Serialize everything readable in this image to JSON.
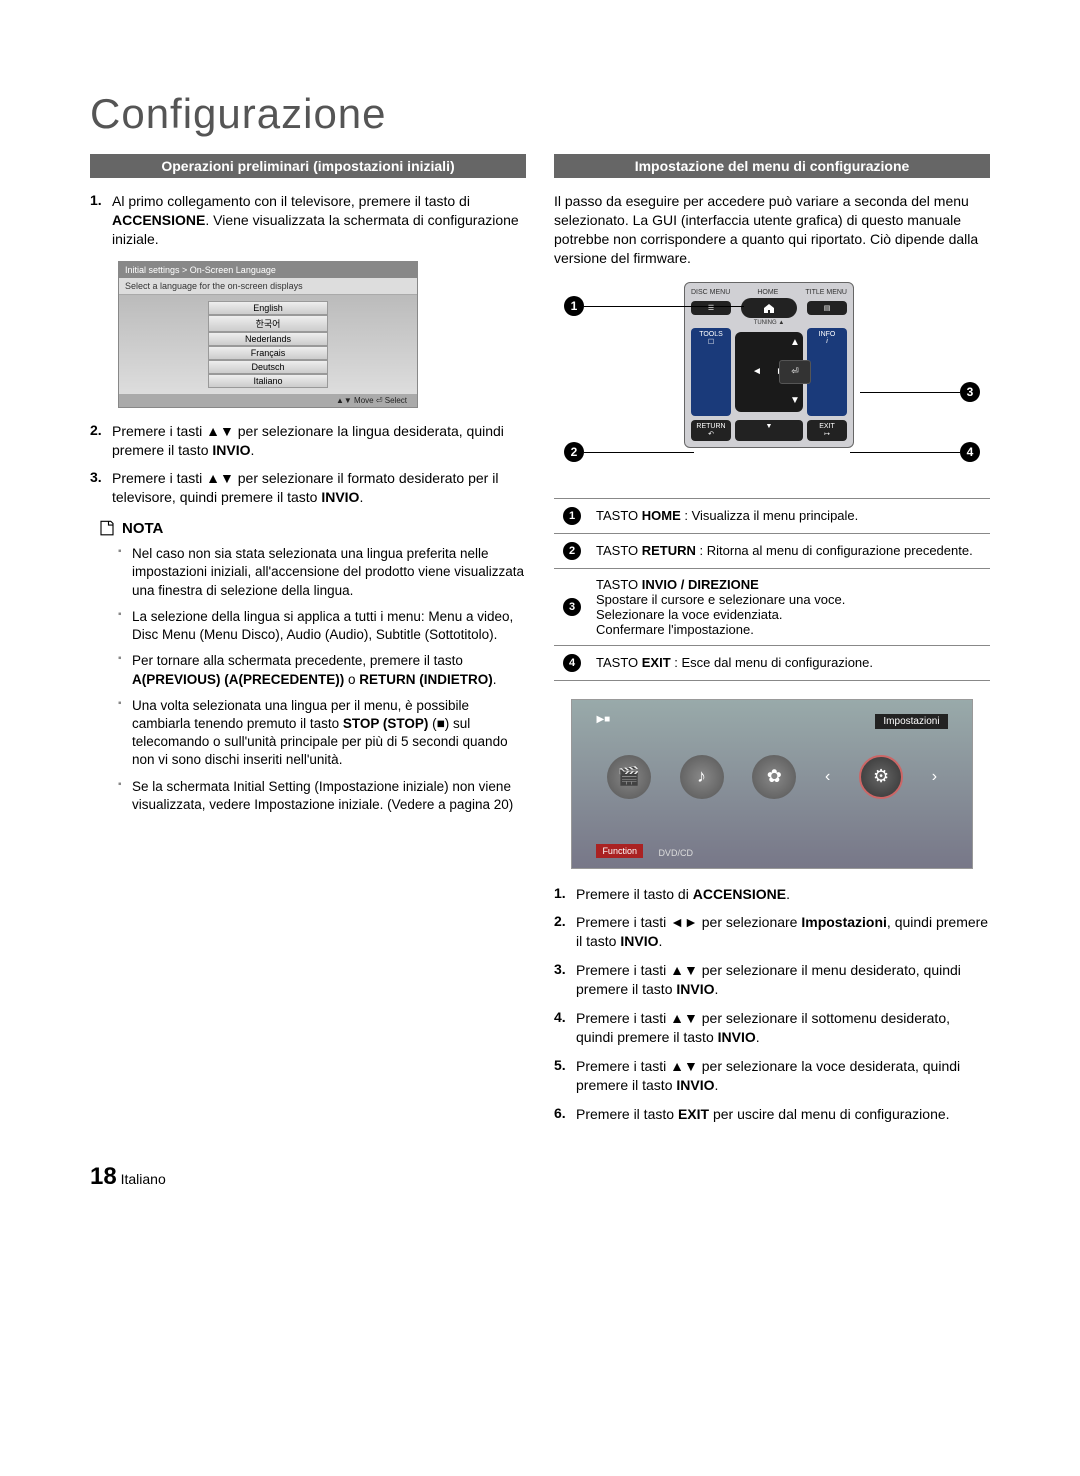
{
  "title": "Configurazione",
  "left": {
    "header": "Operazioni preliminari (impostazioni iniziali)",
    "steps": [
      {
        "n": "1.",
        "html": "Al primo collegamento con il televisore, premere il tasto di <b>ACCENSIONE</b>. Viene visualizzata la schermata di configurazione iniziale."
      },
      {
        "n": "2.",
        "html": "Premere i tasti ▲▼ per selezionare la lingua desiderata, quindi premere il tasto <b>INVIO</b>."
      },
      {
        "n": "3.",
        "html": "Premere i tasti ▲▼ per selezionare il formato desiderato per il televisore, quindi premere il tasto <b>INVIO</b>."
      }
    ],
    "lang_title": "Initial settings > On-Screen Language",
    "lang_sub": "Select a language for the on-screen displays",
    "languages": [
      "English",
      "한국어",
      "Nederlands",
      "Français",
      "Deutsch",
      "Italiano"
    ],
    "lang_foot": "▲▼ Move   ⏎ Select",
    "nota_label": "NOTA",
    "nota": [
      "Nel caso non sia stata selezionata una lingua preferita nelle impostazioni iniziali, all'accensione del prodotto viene visualizzata una finestra di selezione della lingua.",
      "La selezione della lingua si applica a tutti i menu: Menu a video, Disc Menu (Menu Disco), Audio (Audio), Subtitle (Sottotitolo).",
      "Per tornare alla schermata precedente, premere il tasto <b>A(PREVIOUS) (A(PRECEDENTE))</b> o <b>RETURN (INDIETRO)</b>.",
      "Una volta selezionata una lingua per il menu, è possibile cambiarla tenendo premuto il tasto <b>STOP (STOP)</b> (■) sul telecomando o sull'unità principale per più di 5 secondi quando non vi sono dischi inseriti nell'unità.",
      "Se la schermata Initial Setting (Impostazione iniziale) non viene visualizzata, vedere Impostazione iniziale. (Vedere a pagina 20)"
    ]
  },
  "right": {
    "header": "Impostazione del menu di configurazione",
    "intro": "Il passo da eseguire per accedere può variare a seconda del menu selezionato. La GUI (interfaccia utente grafica) di questo manuale potrebbe non corrispondere a quanto qui riportato. Ciò dipende dalla versione del firmware.",
    "remote": {
      "topLabels": {
        "l": "DISC MENU",
        "c": "HOME",
        "r": "TITLE MENU"
      },
      "tuning": "TUNING ▲",
      "tools": "TOOLS",
      "info": "INFO",
      "return": "RETURN",
      "exit": "EXIT"
    },
    "callouts": [
      {
        "n": "1",
        "html": "TASTO <b>HOME</b> : Visualizza il menu principale."
      },
      {
        "n": "2",
        "html": "TASTO <b>RETURN</b> : Ritorna al menu di configurazione precedente."
      },
      {
        "n": "3",
        "html": "TASTO <b>INVIO / DIREZIONE</b><br>Spostare il cursore e selezionare una voce.<br>Selezionare la voce evidenziata.<br>Confermare l'impostazione."
      },
      {
        "n": "4",
        "html": "TASTO <b>EXIT</b> : Esce dal menu di configurazione."
      }
    ],
    "sshot": {
      "topLeft": "▶■",
      "topRight": "Impostazioni",
      "foot1": "Function",
      "foot2": "DVD/CD"
    },
    "steps": [
      {
        "n": "1.",
        "html": "Premere il tasto di <b>ACCENSIONE</b>."
      },
      {
        "n": "2.",
        "html": "Premere i tasti ◄► per selezionare <b>Impostazioni</b>, quindi premere il tasto <b>INVIO</b>."
      },
      {
        "n": "3.",
        "html": "Premere i tasti ▲▼ per selezionare il menu desiderato, quindi premere il tasto <b>INVIO</b>."
      },
      {
        "n": "4.",
        "html": "Premere i tasti ▲▼ per selezionare il sottomenu desiderato, quindi premere il tasto <b>INVIO</b>."
      },
      {
        "n": "5.",
        "html": "Premere i tasti ▲▼ per selezionare la voce desiderata, quindi premere il tasto <b>INVIO</b>."
      },
      {
        "n": "6.",
        "html": "Premere il tasto <b>EXIT</b> per uscire dal menu di configurazione."
      }
    ]
  },
  "footer": {
    "page": "18",
    "lang": "Italiano"
  },
  "colors": {
    "headerBg": "#666666",
    "headerFg": "#ffffff",
    "calloutBg": "#000000"
  }
}
